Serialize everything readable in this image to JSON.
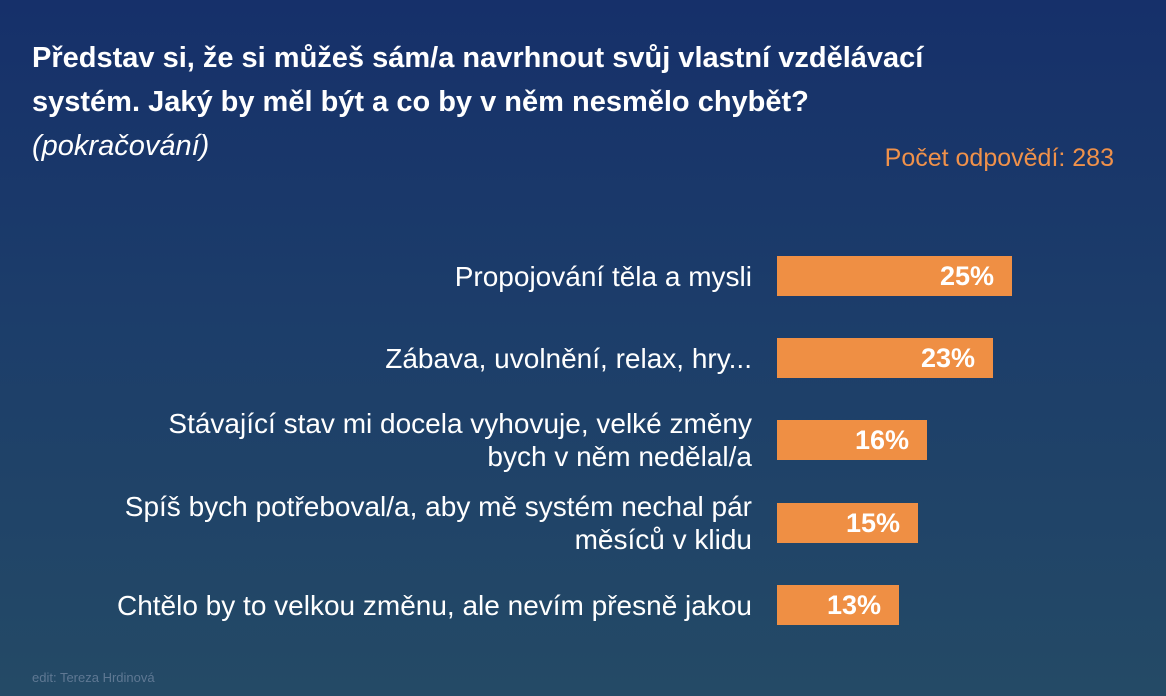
{
  "title_lines": [
    "Představ si, že si můžeš sám/a navrhnout svůj vlastní vzdělávací",
    "systém. Jaký by měl být a co by v něm nesmělo chybět?"
  ],
  "subtitle": "(pokračování)",
  "response_count": "Počet odpovědí: 283",
  "credit": "edit: Tereza Hrdinová",
  "colors": {
    "bar": "#ef8f44",
    "count_text": "#f0914a",
    "background_top": "#16306a",
    "background_bottom": "#244a66"
  },
  "chart_data": {
    "type": "bar",
    "orientation": "horizontal",
    "categories": [
      "Propojování těla a mysli",
      "Zábava, uvolnění, relax, hry...",
      "Stávající stav mi docela vyhovuje, velké změny bych v něm nedělal/a",
      "Spíš bych potřeboval/a, aby mě systém nechal pár měsíců v klidu",
      "Chtělo by to velkou změnu, ale nevím přesně jakou"
    ],
    "category_lines": [
      [
        "Propojování těla a mysli"
      ],
      [
        "Zábava, uvolnění, relax, hry..."
      ],
      [
        "Stávající stav mi docela vyhovuje, velké změny",
        "bych v něm nedělal/a"
      ],
      [
        "Spíš bych potřeboval/a, aby mě systém nechal pár",
        "měsíců v klidu"
      ],
      [
        "Chtělo by to velkou změnu, ale nevím přesně jakou"
      ]
    ],
    "values": [
      25,
      23,
      16,
      15,
      13
    ],
    "value_labels": [
      "25%",
      "23%",
      "16%",
      "15%",
      "13%"
    ],
    "unit": "%",
    "grid": false,
    "legend": "none"
  }
}
